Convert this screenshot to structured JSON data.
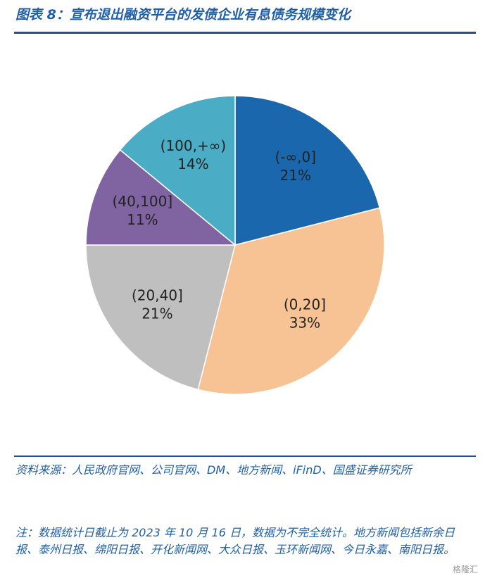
{
  "chart_data": {
    "type": "pie",
    "title": "图表 8：宣布退出融资平台的发债企业有息债务规模变化",
    "categories": [
      "(-∞,0]",
      "(0,20]",
      "(20,40]",
      "(40,100]",
      "(100,+∞)"
    ],
    "values": [
      21,
      33,
      21,
      11,
      14
    ],
    "value_labels": [
      "21%",
      "33%",
      "21%",
      "11%",
      "14%"
    ],
    "colors": [
      "#1b67ad",
      "#f8c394",
      "#bfbfbf",
      "#8064a2",
      "#4bacc6"
    ],
    "source": "资料来源：人民政府官网、公司官网、DM、地方新闻、iFinD、国盛证券研究所",
    "note": "注：数据统计日截止为 2023 年 10 月 16 日，数据为不完全统计。地方新闻包括新余日报、泰州日报、绵阳日报、开化新闻网、大众日报、玉环新闻网、今日永嘉、南阳日报。",
    "watermark": "格隆汇"
  }
}
